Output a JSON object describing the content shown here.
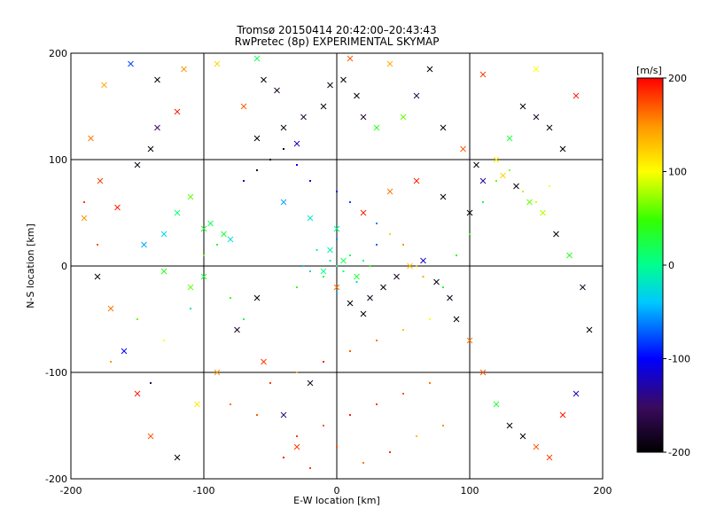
{
  "chart_data": {
    "type": "scatter",
    "title": "Tromsø 20150414 20:42:00–20:43:43",
    "subtitle": "RwPretec (8p) EXPERIMENTAL SKYMAP",
    "xlabel": "E-W location [km]",
    "ylabel": "N-S location [km]",
    "xlim": [
      -200,
      200
    ],
    "ylim": [
      -200,
      200
    ],
    "x_ticks": [
      "-200",
      "-100",
      "0",
      "100",
      "200"
    ],
    "y_ticks": [
      "-200",
      "-100",
      "0",
      "100",
      "200"
    ],
    "grid": true,
    "colorbar": {
      "label": "[m/s]",
      "range": [
        -200,
        200
      ],
      "ticks": [
        "200",
        "100",
        "0",
        "-100",
        "-200"
      ],
      "colormap": [
        "#000000",
        "#3a0a5e",
        "#0000ff",
        "#00c8ff",
        "#00ff90",
        "#33ff00",
        "#ffff00",
        "#ff9900",
        "#ff0000"
      ]
    },
    "markers": [
      "x",
      "dot"
    ],
    "series": [
      {
        "marker": "x",
        "points": [
          [
            -190,
            45,
            150
          ],
          [
            -178,
            80,
            180
          ],
          [
            -150,
            95,
            -190
          ],
          [
            -140,
            110,
            -200
          ],
          [
            -135,
            130,
            -150
          ],
          [
            -120,
            145,
            190
          ],
          [
            -110,
            65,
            60
          ],
          [
            -95,
            40,
            20
          ],
          [
            -85,
            30,
            30
          ],
          [
            -80,
            25,
            -20
          ],
          [
            -70,
            150,
            170
          ],
          [
            -60,
            120,
            -200
          ],
          [
            -55,
            175,
            -200
          ],
          [
            -45,
            165,
            -180
          ],
          [
            -40,
            130,
            -190
          ],
          [
            -30,
            115,
            -120
          ],
          [
            -25,
            140,
            -170
          ],
          [
            -10,
            150,
            -200
          ],
          [
            -5,
            170,
            -190
          ],
          [
            5,
            175,
            -200
          ],
          [
            15,
            160,
            -200
          ],
          [
            20,
            140,
            -170
          ],
          [
            30,
            130,
            40
          ],
          [
            50,
            140,
            60
          ],
          [
            60,
            160,
            -160
          ],
          [
            80,
            130,
            -200
          ],
          [
            95,
            110,
            170
          ],
          [
            105,
            95,
            -200
          ],
          [
            110,
            80,
            -130
          ],
          [
            120,
            100,
            110
          ],
          [
            130,
            120,
            30
          ],
          [
            140,
            150,
            -200
          ],
          [
            150,
            140,
            -180
          ],
          [
            160,
            130,
            -200
          ],
          [
            170,
            110,
            -200
          ],
          [
            180,
            160,
            190
          ],
          [
            -180,
            -10,
            -200
          ],
          [
            -170,
            -40,
            160
          ],
          [
            -160,
            -80,
            -100
          ],
          [
            -150,
            -120,
            190
          ],
          [
            -140,
            -160,
            170
          ],
          [
            -120,
            -180,
            -200
          ],
          [
            -105,
            -130,
            110
          ],
          [
            -90,
            -100,
            150
          ],
          [
            -75,
            -60,
            -180
          ],
          [
            -60,
            -30,
            -200
          ],
          [
            -55,
            -90,
            180
          ],
          [
            -40,
            -140,
            -140
          ],
          [
            -30,
            -170,
            180
          ],
          [
            -20,
            -110,
            -180
          ],
          [
            0,
            -20,
            160
          ],
          [
            10,
            -35,
            -200
          ],
          [
            20,
            -45,
            -200
          ],
          [
            25,
            -30,
            -190
          ],
          [
            35,
            -20,
            -200
          ],
          [
            45,
            -10,
            -180
          ],
          [
            55,
            0,
            130
          ],
          [
            65,
            5,
            -120
          ],
          [
            75,
            -15,
            -200
          ],
          [
            85,
            -30,
            -190
          ],
          [
            90,
            -50,
            -200
          ],
          [
            100,
            -70,
            160
          ],
          [
            110,
            -100,
            170
          ],
          [
            120,
            -130,
            30
          ],
          [
            130,
            -150,
            -200
          ],
          [
            140,
            -160,
            -200
          ],
          [
            150,
            -170,
            170
          ],
          [
            160,
            -180,
            180
          ],
          [
            170,
            -140,
            190
          ],
          [
            180,
            -120,
            -120
          ],
          [
            190,
            -60,
            -200
          ],
          [
            185,
            -20,
            -180
          ],
          [
            175,
            10,
            40
          ],
          [
            165,
            30,
            -200
          ],
          [
            155,
            50,
            80
          ],
          [
            145,
            60,
            60
          ],
          [
            135,
            75,
            -200
          ],
          [
            125,
            85,
            120
          ],
          [
            -100,
            -10,
            30
          ],
          [
            -110,
            -20,
            60
          ],
          [
            -130,
            -5,
            40
          ],
          [
            -145,
            20,
            -50
          ],
          [
            -165,
            55,
            190
          ],
          [
            -185,
            120,
            160
          ],
          [
            -175,
            170,
            140
          ],
          [
            -155,
            190,
            -80
          ],
          [
            -135,
            175,
            -200
          ],
          [
            -115,
            185,
            150
          ],
          [
            -90,
            190,
            120
          ],
          [
            -60,
            195,
            20
          ],
          [
            10,
            195,
            170
          ],
          [
            40,
            190,
            140
          ],
          [
            70,
            185,
            -200
          ],
          [
            110,
            180,
            180
          ],
          [
            150,
            185,
            100
          ],
          [
            -40,
            60,
            -50
          ],
          [
            -20,
            45,
            -20
          ],
          [
            0,
            35,
            0
          ],
          [
            20,
            50,
            190
          ],
          [
            40,
            70,
            160
          ],
          [
            60,
            80,
            190
          ],
          [
            80,
            65,
            -200
          ],
          [
            100,
            50,
            -200
          ],
          [
            -10,
            -5,
            0
          ],
          [
            5,
            5,
            20
          ],
          [
            15,
            -10,
            30
          ],
          [
            -5,
            15,
            -10
          ],
          [
            -120,
            50,
            10
          ],
          [
            -100,
            35,
            30
          ],
          [
            -130,
            30,
            -30
          ]
        ]
      },
      {
        "marker": "dot",
        "points": [
          [
            -30,
            -160,
            180
          ],
          [
            -10,
            -150,
            170
          ],
          [
            10,
            -140,
            190
          ],
          [
            30,
            -130,
            180
          ],
          [
            50,
            -120,
            170
          ],
          [
            70,
            -110,
            160
          ],
          [
            -40,
            -180,
            190
          ],
          [
            -20,
            -190,
            180
          ],
          [
            0,
            -170,
            175
          ],
          [
            20,
            -185,
            160
          ],
          [
            40,
            -175,
            185
          ],
          [
            60,
            -160,
            130
          ],
          [
            80,
            -150,
            150
          ],
          [
            -60,
            -140,
            170
          ],
          [
            -80,
            -130,
            160
          ],
          [
            -50,
            -110,
            180
          ],
          [
            -30,
            -100,
            140
          ],
          [
            -10,
            -90,
            190
          ],
          [
            10,
            -80,
            170
          ],
          [
            30,
            -70,
            160
          ],
          [
            50,
            -60,
            130
          ],
          [
            70,
            -50,
            100
          ],
          [
            0,
            0,
            0
          ],
          [
            5,
            -5,
            10
          ],
          [
            -5,
            5,
            -10
          ],
          [
            10,
            10,
            20
          ],
          [
            -10,
            -10,
            30
          ],
          [
            15,
            -15,
            -20
          ],
          [
            -15,
            15,
            0
          ],
          [
            20,
            5,
            10
          ],
          [
            -20,
            -5,
            -30
          ],
          [
            25,
            0,
            40
          ],
          [
            -25,
            0,
            -40
          ],
          [
            0,
            25,
            -60
          ],
          [
            0,
            -25,
            -50
          ],
          [
            30,
            20,
            -70
          ],
          [
            -30,
            -20,
            50
          ],
          [
            -50,
            100,
            -200
          ],
          [
            -40,
            110,
            -190
          ],
          [
            -60,
            90,
            -180
          ],
          [
            -70,
            80,
            -120
          ],
          [
            -30,
            95,
            -100
          ],
          [
            -20,
            80,
            -110
          ],
          [
            0,
            70,
            -90
          ],
          [
            10,
            60,
            -80
          ],
          [
            30,
            40,
            -60
          ],
          [
            40,
            30,
            120
          ],
          [
            50,
            20,
            150
          ],
          [
            60,
            0,
            130
          ],
          [
            65,
            -10,
            140
          ],
          [
            -90,
            20,
            40
          ],
          [
            -100,
            10,
            60
          ],
          [
            -80,
            -30,
            50
          ],
          [
            -70,
            -50,
            20
          ],
          [
            -110,
            -40,
            -20
          ],
          [
            120,
            80,
            60
          ],
          [
            140,
            70,
            80
          ],
          [
            150,
            60,
            90
          ],
          [
            130,
            90,
            70
          ],
          [
            160,
            75,
            100
          ],
          [
            110,
            60,
            20
          ],
          [
            100,
            30,
            50
          ],
          [
            90,
            10,
            40
          ],
          [
            80,
            -20,
            30
          ],
          [
            -150,
            -50,
            60
          ],
          [
            -170,
            -90,
            150
          ],
          [
            -140,
            -110,
            -150
          ],
          [
            -130,
            -70,
            100
          ],
          [
            -190,
            60,
            180
          ],
          [
            -180,
            20,
            170
          ]
        ]
      }
    ]
  }
}
